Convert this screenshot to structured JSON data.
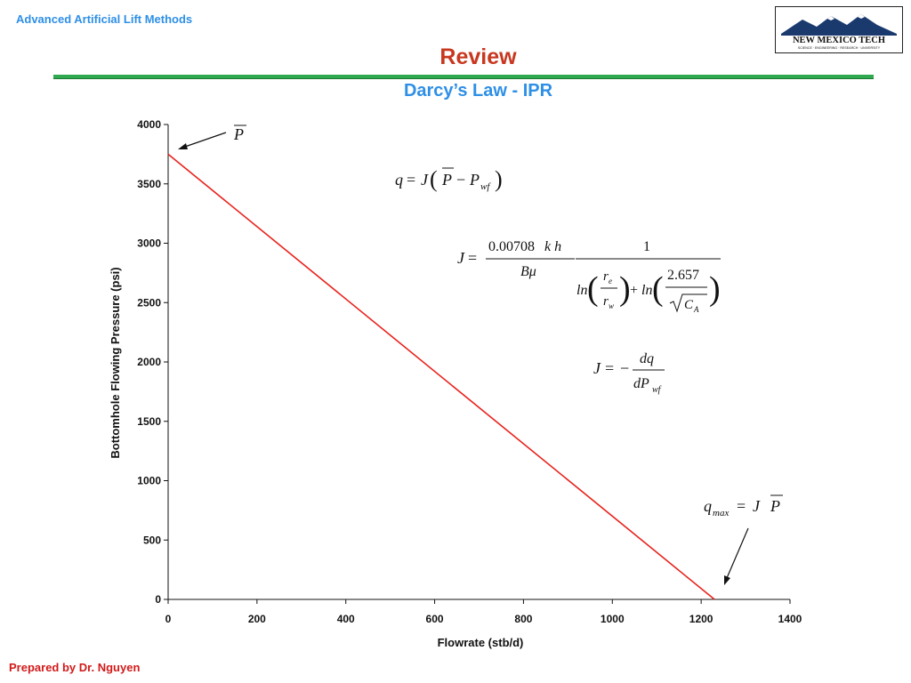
{
  "header": {
    "course": "Advanced Artificial Lift Methods",
    "logo_text": "NEW MEXICO TECH",
    "logo_subtext": "SCIENCE · ENGINEERING · RESEARCH · UNIVERSITY"
  },
  "slide": {
    "title": "Review",
    "subtitle": "Darcy’s Law - IPR"
  },
  "footer": {
    "author": "Prepared by Dr. Nguyen"
  },
  "colors": {
    "accent_blue": "#2e8fe6",
    "title_red": "#c8371f",
    "rule_green": "#2fa84f",
    "line_red": "#e8231e",
    "footer_red": "#d21a1a"
  },
  "chart_data": {
    "type": "line",
    "x": [
      0,
      1230
    ],
    "series": [
      {
        "values": [
          3750,
          0
        ]
      }
    ],
    "xlabel": "Flowrate (stb/d)",
    "ylabel": "Bottomhole Flowing Pressure (psi)",
    "xlim": [
      0,
      1400
    ],
    "ylim": [
      0,
      4000
    ],
    "xticks": [
      0,
      200,
      400,
      600,
      800,
      1000,
      1200,
      1400
    ],
    "yticks": [
      0,
      500,
      1000,
      1500,
      2000,
      2500,
      3000,
      3500,
      4000
    ],
    "grid": false,
    "annotations": {
      "pbar_label": "P",
      "darcy_eq": "q = J(P − Pwf)",
      "j_eq": "J = (0.00708 k h / Bμ) · 1 / (ln(re/rw) + ln(2.657/√CA))",
      "j_derivative": "J = −dq/dPwf",
      "qmax_eq": "qmax = J P"
    }
  }
}
